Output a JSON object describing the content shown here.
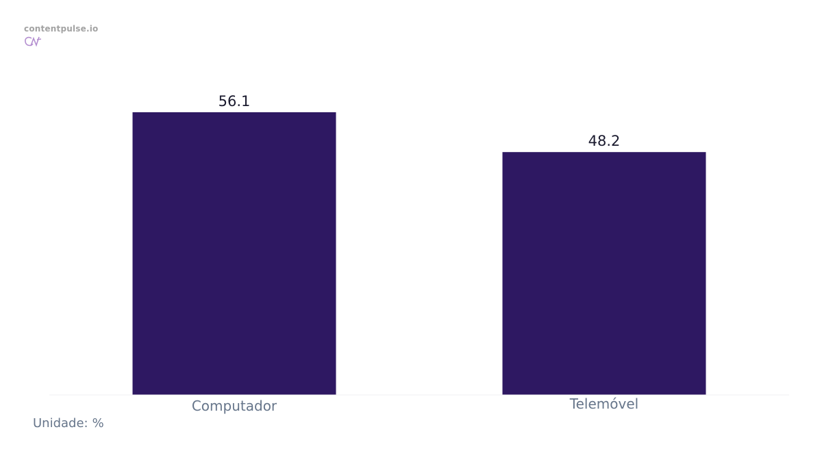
{
  "brand": {
    "name": "contentpulse.io",
    "logo_icon": "cp-logo-icon",
    "logo_color": "#b48fd0",
    "text_color": "#a3a3a3"
  },
  "unit_note": {
    "label": "Unidade:",
    "unit": "%"
  },
  "chart_data": {
    "type": "bar",
    "categories": [
      "Computador",
      "Telemóvel"
    ],
    "values": [
      56.1,
      48.2
    ],
    "value_labels": [
      "56.1",
      "48.2"
    ],
    "title": "",
    "xlabel": "",
    "ylabel": "",
    "ylim": [
      0,
      56.1
    ],
    "grid": false,
    "legend": "none",
    "bar_color": "#2e1862",
    "value_label_color": "#1a1a2e",
    "tick_label_color": "#66758a",
    "baseline_color": "#f0f0f3"
  }
}
